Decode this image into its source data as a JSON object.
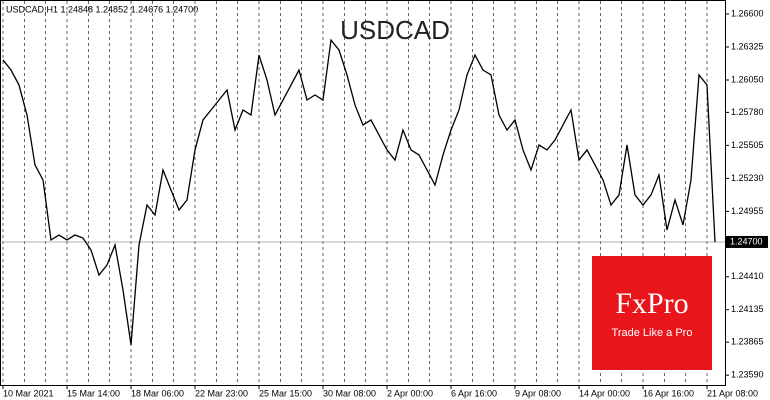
{
  "chart_data": {
    "type": "line",
    "header": "USDCAD,H1  1.24848 1.24852 1.24676 1.24700",
    "title": "USDCAD",
    "categories": [
      "10 Mar 2021",
      null,
      null,
      null,
      null,
      null,
      null,
      null,
      "15 Mar 14:00",
      null,
      null,
      null,
      null,
      null,
      null,
      null,
      "18 Mar 06:00",
      null,
      null,
      null,
      null,
      null,
      null,
      null,
      "22 Mar 23:00",
      null,
      null,
      null,
      null,
      null,
      null,
      null,
      "25 Mar 15:00",
      null,
      null,
      null,
      null,
      null,
      null,
      null,
      "30 Mar 08:00",
      null,
      null,
      null,
      null,
      null,
      null,
      null,
      "2 Apr 00:00",
      null,
      null,
      null,
      null,
      null,
      null,
      null,
      "6 Apr 16:00",
      null,
      null,
      null,
      null,
      null,
      null,
      null,
      "9 Apr 08:00",
      null,
      null,
      null,
      null,
      null,
      null,
      null,
      "14 Apr 00:00",
      null,
      null,
      null,
      null,
      null,
      null,
      null,
      "16 Apr 16:00",
      null,
      null,
      null,
      null,
      null,
      null,
      null,
      "21 Apr 08:00",
      null
    ],
    "values": [
      1.26217,
      1.26133,
      1.26008,
      1.25758,
      1.25342,
      1.25217,
      1.24717,
      1.24758,
      1.24717,
      1.24758,
      1.24733,
      1.24633,
      1.24425,
      1.24508,
      1.24675,
      1.243,
      1.23842,
      1.24675,
      1.25008,
      1.24925,
      1.253,
      1.25133,
      1.24967,
      1.2505,
      1.25467,
      1.25717,
      1.258,
      1.25883,
      1.25967,
      1.25633,
      1.258,
      1.25758,
      1.26258,
      1.2605,
      1.25758,
      1.25883,
      1.26008,
      1.26133,
      1.25883,
      1.25925,
      1.25883,
      1.26383,
      1.263,
      1.26092,
      1.25842,
      1.25675,
      1.25717,
      1.25592,
      1.25467,
      1.25383,
      1.25633,
      1.25467,
      1.25425,
      1.253,
      1.25175,
      1.25425,
      1.25633,
      1.258,
      1.26092,
      1.26258,
      1.26133,
      1.26092,
      1.25758,
      1.25633,
      1.25717,
      1.25467,
      1.253,
      1.25508,
      1.25467,
      1.2555,
      1.25675,
      1.258,
      1.25383,
      1.25467,
      1.25342,
      1.25217,
      1.25008,
      1.25092,
      1.25508,
      1.25092,
      1.25008,
      1.25092,
      1.25258,
      1.248,
      1.2505,
      1.24842,
      1.25217,
      1.26092,
      1.26008,
      1.247
    ],
    "color": "#000000",
    "ylim": [
      1.23508,
      1.26675
    ],
    "yticks": [
      {
        "value": 1.266,
        "label": "1.26600"
      },
      {
        "value": 1.26325,
        "label": "1.26325"
      },
      {
        "value": 1.2605,
        "label": "1.26050"
      },
      {
        "value": 1.2578,
        "label": "1.25780"
      },
      {
        "value": 1.25505,
        "label": "1.25505"
      },
      {
        "value": 1.2523,
        "label": "1.25230"
      },
      {
        "value": 1.24955,
        "label": "1.24955"
      },
      {
        "value": 1.2441,
        "label": "1.24410"
      },
      {
        "value": 1.24135,
        "label": "1.24135"
      },
      {
        "value": 1.23865,
        "label": "1.23865"
      },
      {
        "value": 1.2359,
        "label": "1.23590"
      }
    ],
    "last_price": {
      "value": 1.247,
      "label": "1.24700"
    },
    "grid": true,
    "logo": {
      "brand": "FxPro",
      "slogan": "Trade Like a Pro",
      "color": "#e8161b"
    }
  }
}
